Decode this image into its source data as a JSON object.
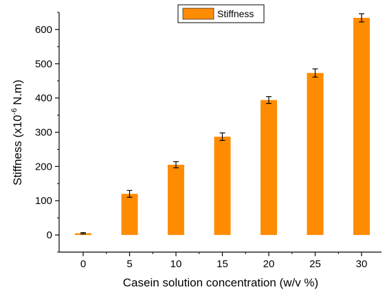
{
  "chart_data": {
    "type": "bar",
    "categories": [
      "0",
      "5",
      "10",
      "15",
      "20",
      "25",
      "30"
    ],
    "series": [
      {
        "name": "Stiffness",
        "values": [
          5,
          120,
          205,
          287,
          394,
          473,
          634
        ],
        "errors": [
          2,
          10,
          9,
          11,
          10,
          12,
          12
        ],
        "color": "#FF8C00"
      }
    ],
    "xlabel": "Casein solution concentration (w/v %)",
    "ylabel": {
      "prefix": "Stiffness (x10",
      "superscript": "-6",
      "suffix": " N.m)"
    },
    "ylim": [
      -50,
      650
    ],
    "yticks": [
      "0",
      "100",
      "200",
      "300",
      "400",
      "500",
      "600"
    ],
    "grid": false,
    "legend_position": "top-center"
  }
}
